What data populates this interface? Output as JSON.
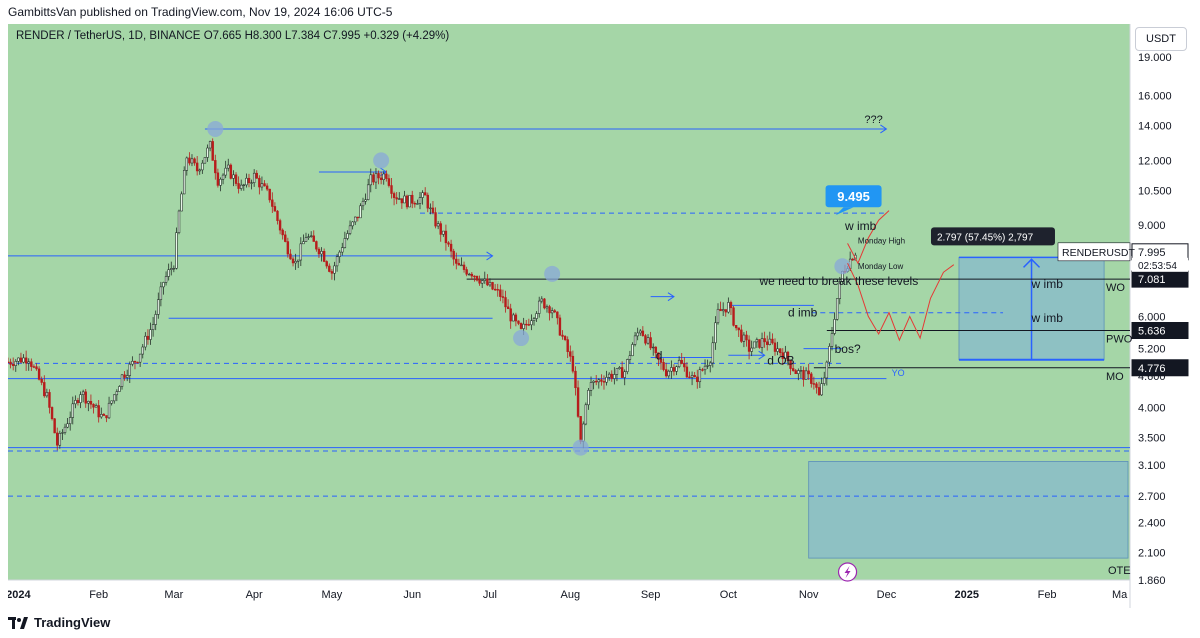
{
  "header": {
    "publisher_line": "GambittsVan published on TradingView.com, Nov 19, 2024 16:06 UTC-5",
    "symbol_line": "RENDER / TetherUS, 1D, BINANCE",
    "ohlc": "O7.665  H8.300  L7.384  C7.995  +0.329 (+4.29%)",
    "currency_button": "USDT"
  },
  "footer": {
    "brand": "TradingView"
  },
  "colors": {
    "background": "#a5d6a7",
    "candle_up": "#26322b",
    "candle_down": "#b71c1c",
    "blue_line": "#2962ff",
    "zone_blue": "#7fb3d5",
    "marker": "#8aa8d8",
    "projection": "#e53935"
  },
  "chart_data": {
    "type": "candlestick",
    "symbol": "RENDERUSDT",
    "y_scale": "log",
    "ylim": [
      1.86,
      22.0
    ],
    "x_start": "2023-12-28",
    "x_end": "2025-03-05",
    "y_ticks": [
      "19.000",
      "16.000",
      "14.000",
      "12.000",
      "10.500",
      "9.000",
      "7.995",
      "7.081",
      "6.000",
      "5.636",
      "5.200",
      "4.776",
      "4.600",
      "4.000",
      "3.500",
      "3.100",
      "2.700",
      "2.400",
      "2.100",
      "1.860"
    ],
    "x_ticks": [
      {
        "date": "2024-01-01",
        "label": "2024",
        "bold": true
      },
      {
        "date": "2024-02-01",
        "label": "Feb"
      },
      {
        "date": "2024-03-01",
        "label": "Mar"
      },
      {
        "date": "2024-04-01",
        "label": "Apr"
      },
      {
        "date": "2024-05-01",
        "label": "May"
      },
      {
        "date": "2024-06-01",
        "label": "Jun"
      },
      {
        "date": "2024-07-01",
        "label": "Jul"
      },
      {
        "date": "2024-08-01",
        "label": "Aug"
      },
      {
        "date": "2024-09-01",
        "label": "Sep"
      },
      {
        "date": "2024-10-01",
        "label": "Oct"
      },
      {
        "date": "2024-11-01",
        "label": "Nov"
      },
      {
        "date": "2024-12-01",
        "label": "Dec"
      },
      {
        "date": "2025-01-01",
        "label": "2025",
        "bold": true
      },
      {
        "date": "2025-02-01",
        "label": "Feb"
      },
      {
        "date": "2025-03-01",
        "label": "Ma"
      }
    ],
    "price_path": [
      [
        "2023-12-28",
        4.9
      ],
      [
        "2024-01-05",
        5.0
      ],
      [
        "2024-01-12",
        4.2
      ],
      [
        "2024-01-16",
        3.4
      ],
      [
        "2024-01-25",
        4.3
      ],
      [
        "2024-02-03",
        3.8
      ],
      [
        "2024-02-10",
        4.6
      ],
      [
        "2024-02-16",
        5.0
      ],
      [
        "2024-02-22",
        5.8
      ],
      [
        "2024-02-26",
        7.0
      ],
      [
        "2024-03-01",
        7.6
      ],
      [
        "2024-03-03",
        9.5
      ],
      [
        "2024-03-06",
        12.2
      ],
      [
        "2024-03-10",
        11.5
      ],
      [
        "2024-03-15",
        12.8
      ],
      [
        "2024-03-18",
        11.0
      ],
      [
        "2024-03-22",
        11.5
      ],
      [
        "2024-03-27",
        10.6
      ],
      [
        "2024-04-01",
        11.2
      ],
      [
        "2024-04-07",
        10.2
      ],
      [
        "2024-04-13",
        8.3
      ],
      [
        "2024-04-17",
        7.6
      ],
      [
        "2024-04-21",
        8.6
      ],
      [
        "2024-04-27",
        8.0
      ],
      [
        "2024-05-01",
        7.3
      ],
      [
        "2024-05-06",
        8.5
      ],
      [
        "2024-05-11",
        9.4
      ],
      [
        "2024-05-16",
        11.0
      ],
      [
        "2024-05-22",
        11.3
      ],
      [
        "2024-05-25",
        10.3
      ],
      [
        "2024-05-30",
        10.0
      ],
      [
        "2024-06-06",
        10.2
      ],
      [
        "2024-06-09",
        9.3
      ],
      [
        "2024-06-14",
        8.4
      ],
      [
        "2024-06-18",
        7.5
      ],
      [
        "2024-06-24",
        7.3
      ],
      [
        "2024-06-30",
        6.9
      ],
      [
        "2024-07-05",
        6.6
      ],
      [
        "2024-07-09",
        6.0
      ],
      [
        "2024-07-13",
        5.6
      ],
      [
        "2024-07-16",
        5.9
      ],
      [
        "2024-07-21",
        6.4
      ],
      [
        "2024-07-25",
        6.2
      ],
      [
        "2024-07-30",
        5.3
      ],
      [
        "2024-08-02",
        4.8
      ],
      [
        "2024-08-05",
        3.4
      ],
      [
        "2024-08-08",
        4.4
      ],
      [
        "2024-08-15",
        4.6
      ],
      [
        "2024-08-22",
        4.7
      ],
      [
        "2024-08-25",
        5.3
      ],
      [
        "2024-08-28",
        5.7
      ],
      [
        "2024-09-03",
        5.0
      ],
      [
        "2024-09-07",
        4.7
      ],
      [
        "2024-09-12",
        4.9
      ],
      [
        "2024-09-18",
        4.5
      ],
      [
        "2024-09-24",
        5.0
      ],
      [
        "2024-09-27",
        6.1
      ],
      [
        "2024-10-01",
        6.3
      ],
      [
        "2024-10-04",
        5.7
      ],
      [
        "2024-10-09",
        5.2
      ],
      [
        "2024-10-15",
        5.4
      ],
      [
        "2024-10-22",
        5.1
      ],
      [
        "2024-10-27",
        4.7
      ],
      [
        "2024-10-31",
        4.6
      ],
      [
        "2024-11-03",
        4.5
      ],
      [
        "2024-11-05",
        4.2
      ],
      [
        "2024-11-08",
        4.8
      ],
      [
        "2024-11-10",
        5.6
      ],
      [
        "2024-11-12",
        6.5
      ],
      [
        "2024-11-14",
        7.3
      ],
      [
        "2024-11-16",
        7.6
      ],
      [
        "2024-11-19",
        8.0
      ]
    ],
    "horizontal_levels": [
      {
        "price": 13.8,
        "from": "2024-03-13",
        "to": "2024-12-01",
        "style": "solid",
        "arrow": true,
        "label": "???"
      },
      {
        "price": 11.4,
        "from": "2024-04-26",
        "to": "2024-05-22",
        "style": "solid",
        "arrow": true
      },
      {
        "price": 7.85,
        "from": "2023-12-28",
        "to": "2024-07-02",
        "style": "solid",
        "arrow": true
      },
      {
        "price": 5.95,
        "from": "2024-02-28",
        "to": "2024-07-02",
        "style": "solid"
      },
      {
        "price": 9.495,
        "from": "2024-06-04",
        "to": "2024-11-30",
        "style": "dashed"
      },
      {
        "price": 7.081,
        "from": "2024-06-22",
        "to": "2025-03-05",
        "style": "solid",
        "label": "WO"
      },
      {
        "price": 6.55,
        "from": "2024-09-01",
        "to": "2024-09-10",
        "style": "solid",
        "arrow": true
      },
      {
        "price": 6.3,
        "from": "2024-10-01",
        "to": "2024-11-03",
        "style": "solid"
      },
      {
        "price": 6.1,
        "from": "2024-11-02",
        "to": "2025-01-15",
        "style": "dashed"
      },
      {
        "price": 5.636,
        "from": "2024-11-08",
        "to": "2025-03-05",
        "style": "solid",
        "label": "PWO"
      },
      {
        "price": 5.2,
        "from": "2024-10-30",
        "to": "2024-11-14",
        "style": "solid"
      },
      {
        "price": 5.0,
        "from": "2024-09-01",
        "to": "2024-09-25",
        "style": "solid"
      },
      {
        "price": 5.05,
        "from": "2024-10-01",
        "to": "2024-10-15",
        "style": "solid",
        "arrow": true
      },
      {
        "price": 4.776,
        "from": "2024-11-03",
        "to": "2025-03-05",
        "style": "solid",
        "label": "MO"
      },
      {
        "price": 4.87,
        "from": "2023-12-28",
        "to": "2024-11-15",
        "style": "dashed"
      },
      {
        "price": 4.55,
        "from": "2023-12-28",
        "to": "2024-12-01",
        "style": "solid"
      },
      {
        "price": 3.35,
        "from": "2023-12-28",
        "to": "2025-03-05",
        "style": "solid"
      },
      {
        "price": 3.3,
        "from": "2023-12-28",
        "to": "2025-03-05",
        "style": "dashed"
      },
      {
        "price": 2.7,
        "from": "2023-12-28",
        "to": "2025-03-05",
        "style": "dashed"
      }
    ],
    "zones": [
      {
        "label": "OTE",
        "from": "2024-11-01",
        "to": "2025-03-05",
        "price_top": 3.15,
        "price_bottom": 2.05
      },
      {
        "label": "w imb",
        "from": "2024-12-29",
        "to": "2025-02-23",
        "price_top": 7.8,
        "price_bottom": 4.95
      }
    ],
    "circle_markers": [
      {
        "date": "2024-03-17",
        "price": 13.8
      },
      {
        "date": "2024-05-20",
        "price": 12.0
      },
      {
        "date": "2024-07-13",
        "price": 5.45
      },
      {
        "date": "2024-07-25",
        "price": 7.25
      },
      {
        "date": "2024-08-05",
        "price": 3.35
      },
      {
        "date": "2024-11-14",
        "price": 7.5
      }
    ],
    "text_annotations": [
      {
        "text": "w imb",
        "date": "2024-11-15",
        "price": 8.8
      },
      {
        "text": "Monday High",
        "date": "2024-11-20",
        "price": 8.3
      },
      {
        "text": "Monday Low",
        "date": "2024-11-20",
        "price": 7.4
      },
      {
        "text": "we need to break these levels",
        "date": "2024-10-13",
        "price": 6.9
      },
      {
        "text": "d imb",
        "date": "2024-10-24",
        "price": 6.0
      },
      {
        "text": "w imb",
        "date": "2025-01-26",
        "price": 6.8
      },
      {
        "text": "w imb",
        "date": "2025-01-26",
        "price": 5.85
      },
      {
        "text": "bos?",
        "date": "2024-11-11",
        "price": 5.1
      },
      {
        "text": "d OB",
        "date": "2024-10-16",
        "price": 4.85
      },
      {
        "text": "d",
        "date": "2024-09-03",
        "price": 4.95
      },
      {
        "text": "YO",
        "date": "2024-12-03",
        "price": 4.6
      }
    ],
    "callout": {
      "text": "9.495",
      "date": "2024-11-16",
      "price": 10.1
    },
    "measure": {
      "text": "2.797 (57.45%) 2,797"
    },
    "price_label": {
      "symbol": "RENDERUSDT",
      "price": "7.995",
      "countdown": "02:53:54"
    },
    "projection_path": [
      [
        "2024-11-16",
        8.3
      ],
      [
        "2024-11-20",
        7.6
      ],
      [
        "2024-11-24",
        8.5
      ],
      [
        "2024-11-28",
        9.2
      ],
      [
        "2024-12-02",
        9.6
      ]
    ],
    "projection_path_2": [
      [
        "2024-11-16",
        7.6
      ],
      [
        "2024-11-20",
        6.9
      ],
      [
        "2024-11-24",
        6.0
      ],
      [
        "2024-11-28",
        5.55
      ],
      [
        "2024-12-02",
        6.1
      ],
      [
        "2024-12-06",
        5.4
      ],
      [
        "2024-12-10",
        6.0
      ],
      [
        "2024-12-14",
        5.45
      ],
      [
        "2024-12-18",
        6.5
      ],
      [
        "2024-12-23",
        7.3
      ],
      [
        "2024-12-27",
        7.55
      ]
    ],
    "side_level_label": {
      "text": "WO"
    }
  }
}
